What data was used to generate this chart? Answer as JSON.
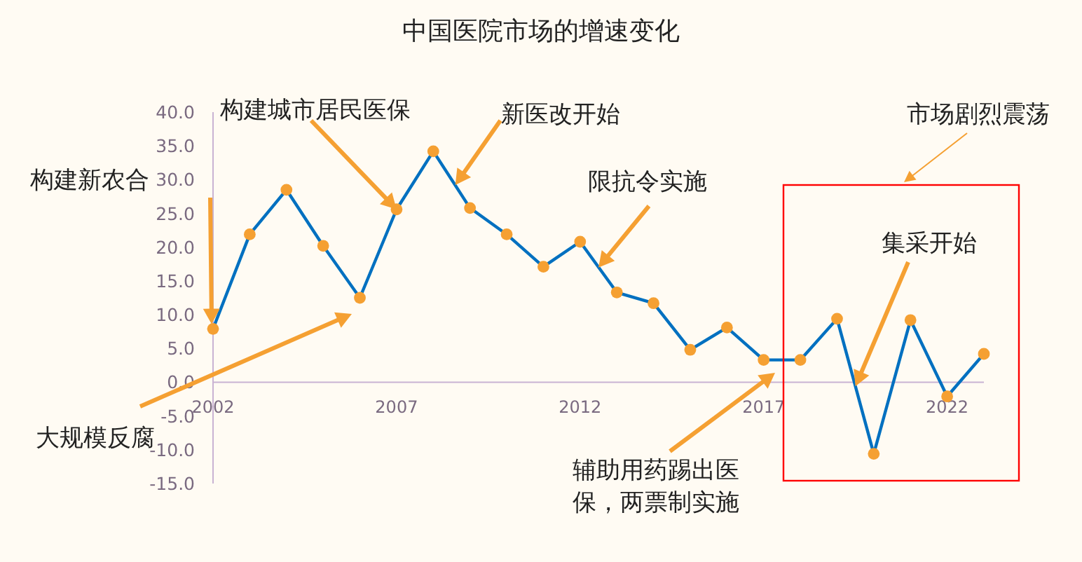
{
  "chart_data": {
    "type": "line",
    "title": "中国医院市场的增速变化",
    "x": [
      2002,
      2003,
      2004,
      2005,
      2006,
      2007,
      2008,
      2009,
      2010,
      2011,
      2012,
      2013,
      2014,
      2015,
      2016,
      2017,
      2018,
      2019,
      2020,
      2021,
      2022,
      2023
    ],
    "series": [
      {
        "color": "#0070c0",
        "colors": [
          "#f5a032",
          "#f5a032",
          "#f5a032",
          "#f5a032",
          "#f5a032",
          "#f5a032",
          "#f5a032",
          "#f5a032",
          "#f5a032",
          "#f5a032",
          "#f5a032",
          "#f5a032",
          "#f5a032",
          "#f5a032",
          "#f5a032",
          "#f5a032",
          "#f5a032",
          "#f5a032",
          "#f5a032",
          "#f5a032",
          "#f5a032",
          "#f5a032"
        ],
        "values": [
          7.9,
          21.9,
          28.5,
          20.2,
          12.5,
          25.6,
          34.2,
          25.8,
          21.9,
          17.1,
          20.8,
          13.3,
          11.7,
          4.8,
          8.1,
          3.3,
          3.3,
          9.4,
          -10.6,
          9.2,
          -2.1,
          4.2
        ]
      }
    ],
    "xlim": [
      2002,
      2023
    ],
    "xticks": [
      2002,
      2007,
      2012,
      2017,
      2022
    ],
    "ylim": [
      -15,
      40
    ],
    "yticks": [
      {
        "value": -15,
        "label": "-15.0"
      },
      {
        "value": -10,
        "label": "-10.0"
      },
      {
        "value": -5,
        "label": "-5.0"
      },
      {
        "value": 0,
        "label": "0.0"
      },
      {
        "value": 5,
        "label": "5.0"
      },
      {
        "value": 10,
        "label": "10.0"
      },
      {
        "value": 15,
        "label": "15.0"
      },
      {
        "value": 20,
        "label": "20.0"
      },
      {
        "value": 25,
        "label": "25.0"
      },
      {
        "value": 30,
        "label": "30.0"
      },
      {
        "value": 35,
        "label": "35.0"
      },
      {
        "value": 40,
        "label": "40.0"
      }
    ],
    "grid": false,
    "marker": "circle",
    "line_style": "solid",
    "annotations": [
      "构建新农合",
      "构建城市居民医保",
      "新医改开始",
      {
        "text": "限抗令实施",
        "x": 2012.5,
        "y": 17
      },
      "大规模反腐",
      "辅助用药踢出医保，两票制实施",
      "集采开始",
      "市场剧烈震荡"
    ]
  }
}
